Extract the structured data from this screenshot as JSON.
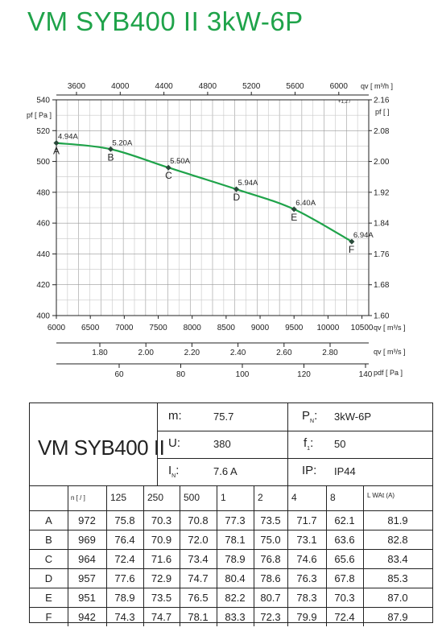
{
  "title": "VM SYB400 II 3kW-6P",
  "chart_data": {
    "type": "line",
    "axes": {
      "x_top_ticks": [
        "3600",
        "4000",
        "4400",
        "4800",
        "5200",
        "5600",
        "6000"
      ],
      "x_top_unit": "qv [ m³/h ]",
      "x_top_unit_small": "+1,2  /",
      "x_bottom_ticks": [
        "6000",
        "6500",
        "7000",
        "7500",
        "8000",
        "8500",
        "9000",
        "9500",
        "10000",
        "10500"
      ],
      "x_bottom_unit": "qv [ m³/s ]",
      "x_bottom_range": [
        6000,
        10600
      ],
      "y_left_ticks": [
        "540",
        "520",
        "500",
        "480",
        "460",
        "440",
        "420",
        "400"
      ],
      "y_left_unit": "pf [ Pa ]",
      "y_left_range": [
        400,
        540
      ],
      "y_right_ticks": [
        "2.16",
        "2.08",
        "2.00",
        "1.92",
        "1.84",
        "1.76",
        "1.68",
        "1.60"
      ],
      "y_right_unit": "pf [ ]",
      "sub1_ticks": [
        "1.80",
        "2.00",
        "2.20",
        "2.40",
        "2.60",
        "2.80"
      ],
      "sub1_unit": "qv [ m³/s ]",
      "sub2_ticks": [
        "60",
        "80",
        "100",
        "120",
        "140"
      ],
      "sub2_unit": "pdf [ Pa ]"
    },
    "series": [
      {
        "color": "#1fa34a",
        "points": [
          {
            "x": 6000,
            "y": 512,
            "label": "A",
            "current": "4.94A"
          },
          {
            "x": 6800,
            "y": 508,
            "label": "B",
            "current": "5.20A"
          },
          {
            "x": 7650,
            "y": 496,
            "label": "C",
            "current": "5.50A"
          },
          {
            "x": 8650,
            "y": 482,
            "label": "D",
            "current": "5.94A"
          },
          {
            "x": 9500,
            "y": 469,
            "label": "E",
            "current": "6.40A"
          },
          {
            "x": 10350,
            "y": 448,
            "label": "F",
            "current": "6.94A"
          }
        ]
      }
    ],
    "grid": true
  },
  "spec": {
    "model": "VM SYB400 II",
    "params": {
      "m_label": "m:",
      "m_value": "75.7",
      "U_label": "U:",
      "U_value": "380",
      "IN_label": "I",
      "IN_sub": "N",
      "IN_colon": ":",
      "IN_value": "7.6  A",
      "PN_label": "P",
      "PN_sub": "N",
      "PN_colon": ":",
      "PN_value": "3kW-6P",
      "f1_label": "f",
      "f1_sub": "1",
      "f1_colon": ":",
      "f1_value": "50",
      "IP_label": "IP:",
      "IP_value": "IP44"
    },
    "noise_table": {
      "header_first": "n [  /  ]",
      "header_bands": [
        "125",
        "250",
        "500",
        "1",
        "2",
        "4",
        "8"
      ],
      "header_last": "L WAt   (A)",
      "rows": [
        {
          "point": "A",
          "n": "972",
          "v": [
            "75.8",
            "70.3",
            "70.8",
            "77.3",
            "73.5",
            "71.7",
            "62.1"
          ],
          "total": "81.9"
        },
        {
          "point": "B",
          "n": "969",
          "v": [
            "76.4",
            "70.9",
            "72.0",
            "78.1",
            "75.0",
            "73.1",
            "63.6"
          ],
          "total": "82.8"
        },
        {
          "point": "C",
          "n": "964",
          "v": [
            "72.4",
            "71.6",
            "73.4",
            "78.9",
            "76.8",
            "74.6",
            "65.6"
          ],
          "total": "83.4"
        },
        {
          "point": "D",
          "n": "957",
          "v": [
            "77.6",
            "72.9",
            "74.7",
            "80.4",
            "78.6",
            "76.3",
            "67.8"
          ],
          "total": "85.3"
        },
        {
          "point": "E",
          "n": "951",
          "v": [
            "78.9",
            "73.5",
            "76.5",
            "82.2",
            "80.7",
            "78.3",
            "70.3"
          ],
          "total": "87.0"
        },
        {
          "point": "F",
          "n": "942",
          "v": [
            "74.3",
            "74.7",
            "78.1",
            "83.3",
            "72.3",
            "79.9",
            "72.4"
          ],
          "total": "87.9"
        }
      ]
    }
  }
}
